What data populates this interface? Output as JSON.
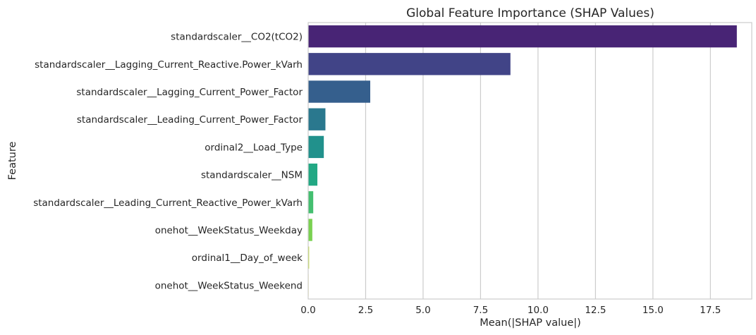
{
  "chart_data": {
    "type": "bar",
    "orientation": "horizontal",
    "title": "Global Feature Importance (SHAP Values)",
    "xlabel": "Mean(|SHAP value|)",
    "ylabel": "Feature",
    "xlim": [
      0,
      19.3
    ],
    "xticks": [
      0.0,
      2.5,
      5.0,
      7.5,
      10.0,
      12.5,
      15.0,
      17.5
    ],
    "xtick_labels": [
      "0.0",
      "2.5",
      "5.0",
      "7.5",
      "10.0",
      "12.5",
      "15.0",
      "17.5"
    ],
    "grid": "vertical",
    "categories": [
      "standardscaler__CO2(tCO2)",
      "standardscaler__Lagging_Current_Reactive.Power_kVarh",
      "standardscaler__Lagging_Current_Power_Factor",
      "standardscaler__Leading_Current_Power_Factor",
      "ordinal2__Load_Type",
      "standardscaler__NSM",
      "standardscaler__Leading_Current_Reactive_Power_kVarh",
      "onehot__WeekStatus_Weekday",
      "ordinal1__Day_of_week",
      "onehot__WeekStatus_Weekend"
    ],
    "values": [
      18.65,
      8.8,
      2.7,
      0.75,
      0.68,
      0.4,
      0.22,
      0.18,
      0.04,
      0.01
    ],
    "colors": [
      "#482475",
      "#414487",
      "#355f8d",
      "#2a788e",
      "#21918c",
      "#22a884",
      "#44bf70",
      "#7ad151",
      "#bddf26",
      "#fde725"
    ]
  }
}
